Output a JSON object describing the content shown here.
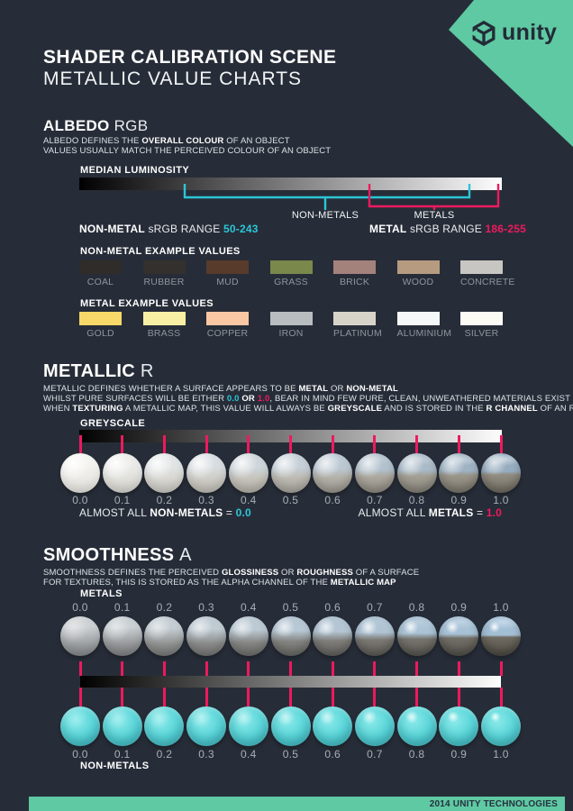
{
  "colors": {
    "background": "#272d38",
    "teal_banner": "#5ec9a2",
    "accent_cyan": "#2bc6d8",
    "accent_pink": "#ed1a5e",
    "cyan_sphere": "#5cd6d9"
  },
  "header": {
    "brand": "unity",
    "title_line1": "SHADER CALIBRATION SCENE",
    "title_line2": "METALLIC VALUE CHARTS"
  },
  "albedo": {
    "heading": "ALBEDO",
    "heading_suffix": "RGB",
    "sub1": [
      [
        "ALBEDO DEFINES THE ",
        ""
      ],
      [
        "OVERALL COLOUR",
        "b"
      ],
      [
        " OF AN OBJECT",
        ""
      ]
    ],
    "sub2": [
      [
        "VALUES USUALLY MATCH THE PERCEIVED COLOUR OF AN OBJECT",
        ""
      ]
    ],
    "bar_label": "MEDIAN LUMINOSITY",
    "bracket_nonmetals": "NON-METALS",
    "bracket_metals": "METALS",
    "range_left": [
      [
        "NON-METAL",
        "b"
      ],
      [
        " sRGB RANGE ",
        ""
      ],
      [
        "50-243",
        "bc"
      ]
    ],
    "range_right": [
      [
        "METAL",
        "b"
      ],
      [
        " sRGB RANGE ",
        ""
      ],
      [
        "186-255",
        "bp"
      ]
    ],
    "nonmetal_header": "NON-METAL EXAMPLE VALUES",
    "nonmetal_swatches": [
      {
        "label": "COAL",
        "color": "#2f2c29"
      },
      {
        "label": "RUBBER",
        "color": "#33302d"
      },
      {
        "label": "MUD",
        "color": "#583b2b"
      },
      {
        "label": "GRASS",
        "color": "#7b884b"
      },
      {
        "label": "BRICK",
        "color": "#a3827b"
      },
      {
        "label": "WOOD",
        "color": "#b69b80"
      },
      {
        "label": "CONCRETE",
        "color": "#c7c6c2"
      }
    ],
    "metal_header": "METAL EXAMPLE VALUES",
    "metal_swatches": [
      {
        "label": "GOLD",
        "color": "#f7d868"
      },
      {
        "label": "BRASS",
        "color": "#f9efa4"
      },
      {
        "label": "COPPER",
        "color": "#fac7a5"
      },
      {
        "label": "IRON",
        "color": "#b9bdc0"
      },
      {
        "label": "PLATINUM",
        "color": "#d8d3c9"
      },
      {
        "label": "ALUMINIUM",
        "color": "#f5f8f8"
      },
      {
        "label": "SILVER",
        "color": "#fcfaf5"
      }
    ]
  },
  "metallic": {
    "heading": "METALLIC",
    "heading_suffix": "R",
    "sub1": [
      [
        "METALLIC DEFINES WHETHER A SURFACE APPEARS TO BE ",
        ""
      ],
      [
        "METAL",
        "b"
      ],
      [
        " OR ",
        ""
      ],
      [
        "NON-METAL",
        "b"
      ]
    ],
    "sub2": [
      [
        "WHILST PURE SURFACES WILL BE EITHER ",
        ""
      ],
      [
        "0.0",
        "bc"
      ],
      [
        " ",
        ""
      ],
      [
        "OR",
        "b"
      ],
      [
        " ",
        ""
      ],
      [
        "1.0",
        "bp"
      ],
      [
        ", BEAR IN MIND FEW PURE, CLEAN, UNWEATHERED MATERIALS EXIST IN REAL LIFE",
        ""
      ]
    ],
    "sub3": [
      [
        "WHEN ",
        ""
      ],
      [
        "TEXTURING",
        "b"
      ],
      [
        " A METALLIC MAP, THIS VALUE WILL ALWAYS BE ",
        ""
      ],
      [
        "GREYSCALE",
        "b"
      ],
      [
        " AND IS STORED IN THE ",
        ""
      ],
      [
        "R CHANNEL",
        "b"
      ],
      [
        " OF AN RGB FILE",
        ""
      ]
    ],
    "bar_label": "GREYSCALE",
    "values": [
      "0.0",
      "0.1",
      "0.2",
      "0.3",
      "0.4",
      "0.5",
      "0.6",
      "0.7",
      "0.8",
      "0.9",
      "1.0"
    ],
    "note_left": [
      [
        "ALMOST ALL ",
        ""
      ],
      [
        "NON-METALS",
        "b"
      ],
      [
        " = ",
        ""
      ],
      [
        "0.0",
        "bc"
      ]
    ],
    "note_right": [
      [
        "ALMOST ALL ",
        ""
      ],
      [
        "METALS",
        "b"
      ],
      [
        " = ",
        ""
      ],
      [
        "1.0",
        "bp"
      ]
    ]
  },
  "smoothness": {
    "heading": "SMOOTHNESS",
    "heading_suffix": "A",
    "sub1": [
      [
        "SMOOTHNESS DEFINES THE PERCEIVED ",
        ""
      ],
      [
        "GLOSSINESS",
        "b"
      ],
      [
        " OR ",
        ""
      ],
      [
        "ROUGHNESS",
        "b"
      ],
      [
        " OF A SURFACE",
        ""
      ]
    ],
    "sub2": [
      [
        "FOR TEXTURES, THIS IS STORED AS THE ALPHA CHANNEL OF THE ",
        ""
      ],
      [
        "METALLIC MAP",
        "b"
      ]
    ],
    "metals_label": "METALS",
    "nonmetals_label": "NON-METALS",
    "values": [
      "0.0",
      "0.1",
      "0.2",
      "0.3",
      "0.4",
      "0.5",
      "0.6",
      "0.7",
      "0.8",
      "0.9",
      "1.0"
    ]
  },
  "footer": {
    "text": "2014 UNITY TECHNOLOGIES"
  }
}
